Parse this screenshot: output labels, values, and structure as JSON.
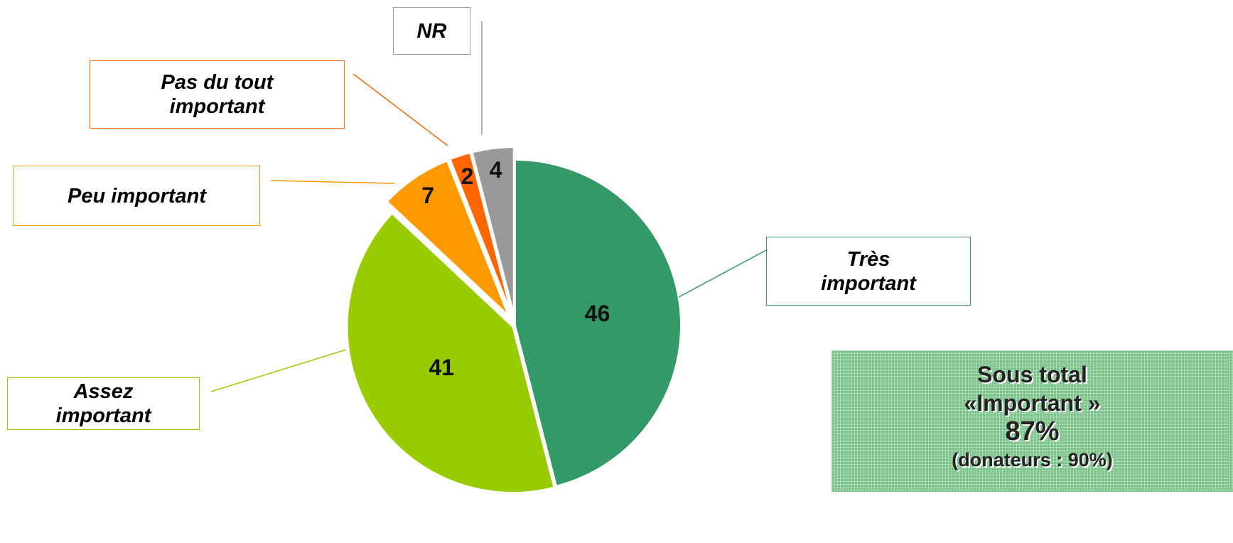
{
  "chart_data": {
    "type": "pie",
    "categories": [
      "Très important",
      "Assez important",
      "Peu important",
      "Pas du tout important",
      "NR"
    ],
    "values": [
      46,
      41,
      7,
      2,
      4
    ],
    "colors": [
      "#339966",
      "#99cc00",
      "#ff9900",
      "#ff6600",
      "#999999"
    ],
    "subtotal": {
      "title": "Sous total «Important »",
      "value": "87%",
      "note": "(donateurs : 90%)"
    }
  }
}
